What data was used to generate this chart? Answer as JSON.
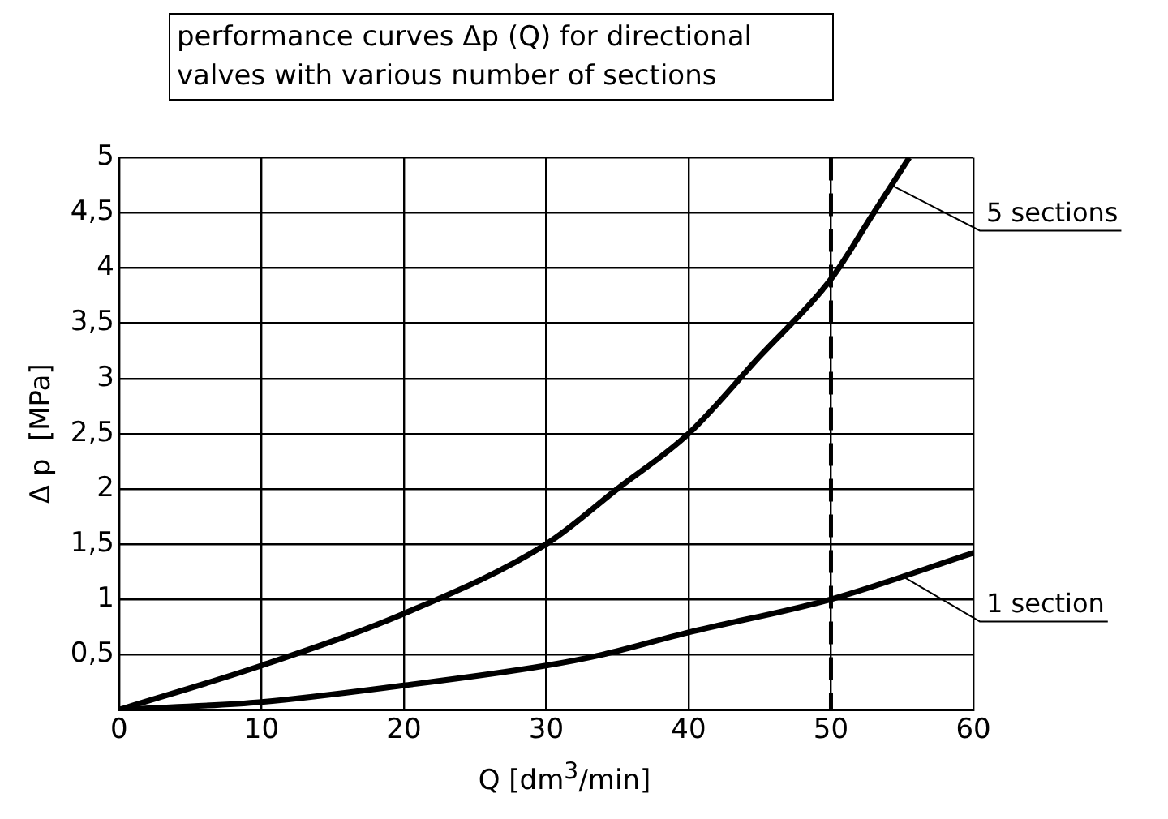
{
  "chart_data": {
    "type": "line",
    "title": "performance curves  Δp (Q) for directional valves with various number of sections",
    "xlabel": "Q  [dm$^{3}$/min]",
    "ylabel": "Δ p  [MPa]",
    "xlim": [
      0,
      60
    ],
    "xticks": [
      0,
      10,
      20,
      30,
      40,
      50,
      60
    ],
    "ylim": [
      0,
      5
    ],
    "yticks": [
      {
        "value": 0.5,
        "label": "0,5"
      },
      1,
      {
        "value": 1.5,
        "label": "1,5"
      },
      2,
      {
        "value": 2.5,
        "label": "2,5"
      },
      3,
      {
        "value": 3.5,
        "label": "3,5"
      },
      4,
      {
        "value": 4.5,
        "label": "4,5"
      },
      5
    ],
    "grid": true,
    "legend": false,
    "marker": "none",
    "line_style": "solid",
    "ref_lines": [
      {
        "axis": "x",
        "value": 50,
        "line_style": "dashed",
        "color": "#000000"
      }
    ],
    "series": [
      {
        "name": "5 sections",
        "color": "#000000",
        "x": [
          0,
          10,
          20,
          30,
          35,
          40,
          45,
          50,
          53,
          55.5
        ],
        "values": [
          0,
          0.4,
          0.87,
          1.5,
          2.0,
          2.5,
          3.2,
          3.9,
          4.5,
          5
        ]
      },
      {
        "name": "1 section",
        "color": "#000000",
        "x": [
          0,
          10,
          20,
          30,
          34,
          40,
          50,
          60
        ],
        "values": [
          0,
          0.07,
          0.22,
          0.4,
          0.5,
          0.7,
          1.0,
          1.42
        ]
      }
    ]
  }
}
